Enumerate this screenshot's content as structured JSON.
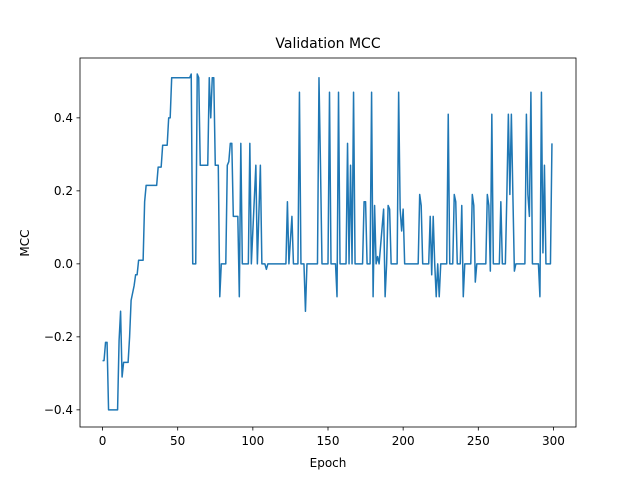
{
  "chart_data": {
    "type": "line",
    "title": "Validation MCC",
    "x_label": "Epoch",
    "y_label": "MCC",
    "series": [
      {
        "color": "#1f77b4",
        "x": [
          0,
          1,
          2,
          3,
          4,
          10,
          11,
          12,
          13,
          14,
          17,
          18,
          19,
          21,
          22,
          23,
          24,
          27,
          28,
          29,
          36,
          37,
          39,
          40,
          43,
          44,
          45,
          46,
          58,
          59,
          60,
          62,
          63,
          64,
          65,
          70,
          71,
          72,
          73,
          74,
          75,
          77,
          78,
          79,
          82,
          83,
          84,
          85,
          86,
          87,
          90,
          91,
          92,
          93,
          97,
          98,
          99,
          102,
          103,
          105,
          106,
          108,
          109,
          110,
          122,
          123,
          124,
          126,
          127,
          130,
          131,
          132,
          134,
          135,
          136,
          143,
          144,
          145,
          146,
          150,
          151,
          152,
          155,
          156,
          157,
          158,
          162,
          163,
          164,
          165,
          166,
          167,
          168,
          173,
          174,
          175,
          176,
          178,
          179,
          180,
          181,
          182,
          183,
          184,
          187,
          188,
          189,
          190,
          191,
          192,
          196,
          197,
          198,
          199,
          200,
          201,
          210,
          211,
          212,
          213,
          217,
          218,
          219,
          220,
          221,
          222,
          223,
          224,
          225,
          229,
          230,
          231,
          233,
          234,
          235,
          236,
          238,
          239,
          240,
          241,
          245,
          246,
          247,
          248,
          249,
          255,
          256,
          257,
          258,
          259,
          260,
          264,
          265,
          266,
          268,
          269,
          270,
          271,
          272,
          273,
          274,
          275,
          281,
          282,
          283,
          284,
          285,
          286,
          290,
          291,
          292,
          293,
          294,
          295,
          298,
          299
        ],
        "values": [
          -0.265,
          -0.265,
          -0.215,
          -0.215,
          -0.4,
          -0.4,
          -0.21,
          -0.13,
          -0.31,
          -0.27,
          -0.27,
          -0.2,
          -0.1,
          -0.06,
          -0.03,
          -0.03,
          0.01,
          0.01,
          0.17,
          0.215,
          0.215,
          0.265,
          0.265,
          0.325,
          0.325,
          0.4,
          0.4,
          0.51,
          0.51,
          0.52,
          0,
          0,
          0.52,
          0.51,
          0.27,
          0.27,
          0.51,
          0.4,
          0.51,
          0.51,
          0.27,
          0.27,
          -0.09,
          0,
          0,
          0.27,
          0.28,
          0.33,
          0.33,
          0.13,
          0.13,
          -0.09,
          0.33,
          0,
          0,
          0.33,
          0,
          0.27,
          0,
          0.27,
          0,
          0,
          -0.015,
          0,
          0,
          0.17,
          0,
          0.13,
          0,
          0,
          0.47,
          0,
          0,
          -0.13,
          0,
          0,
          0.51,
          0.27,
          0,
          0,
          0.47,
          0,
          0,
          -0.09,
          0.47,
          0,
          0,
          0.33,
          0,
          0.27,
          0,
          0.47,
          0,
          0,
          0.17,
          0.17,
          0,
          0,
          0.47,
          -0.09,
          0.16,
          0,
          0.02,
          0,
          0.15,
          -0.09,
          0,
          0.16,
          0.15,
          0,
          0,
          0.47,
          0.15,
          0.09,
          0.15,
          0,
          0,
          0.19,
          0.16,
          0,
          0,
          0.13,
          -0.03,
          0.13,
          0,
          -0.09,
          0,
          -0.09,
          0,
          0,
          0.41,
          0,
          0,
          0.19,
          0.17,
          0,
          0,
          0.16,
          -0.09,
          0,
          0,
          0.19,
          0.16,
          -0.05,
          0,
          0,
          0.19,
          0.16,
          -0.02,
          0.41,
          0,
          0,
          0.17,
          0,
          0,
          0.19,
          0.41,
          0.19,
          0.41,
          0.19,
          -0.02,
          0,
          0,
          0.41,
          0.19,
          0.13,
          0.47,
          0,
          0,
          -0.09,
          0.47,
          0.03,
          0.27,
          0,
          0,
          0.33
        ]
      }
    ],
    "xlim": [
      -15,
      315
    ],
    "ylim": [
      -0.447,
      0.564
    ],
    "xticks": [
      0,
      50,
      100,
      150,
      200,
      250,
      300
    ],
    "yticks": [
      {
        "value": -0.4,
        "label": "−0.4"
      },
      {
        "value": -0.2,
        "label": "−0.2"
      },
      {
        "value": 0,
        "label": "0.0"
      },
      0.2,
      0.4
    ],
    "grid": false
  }
}
